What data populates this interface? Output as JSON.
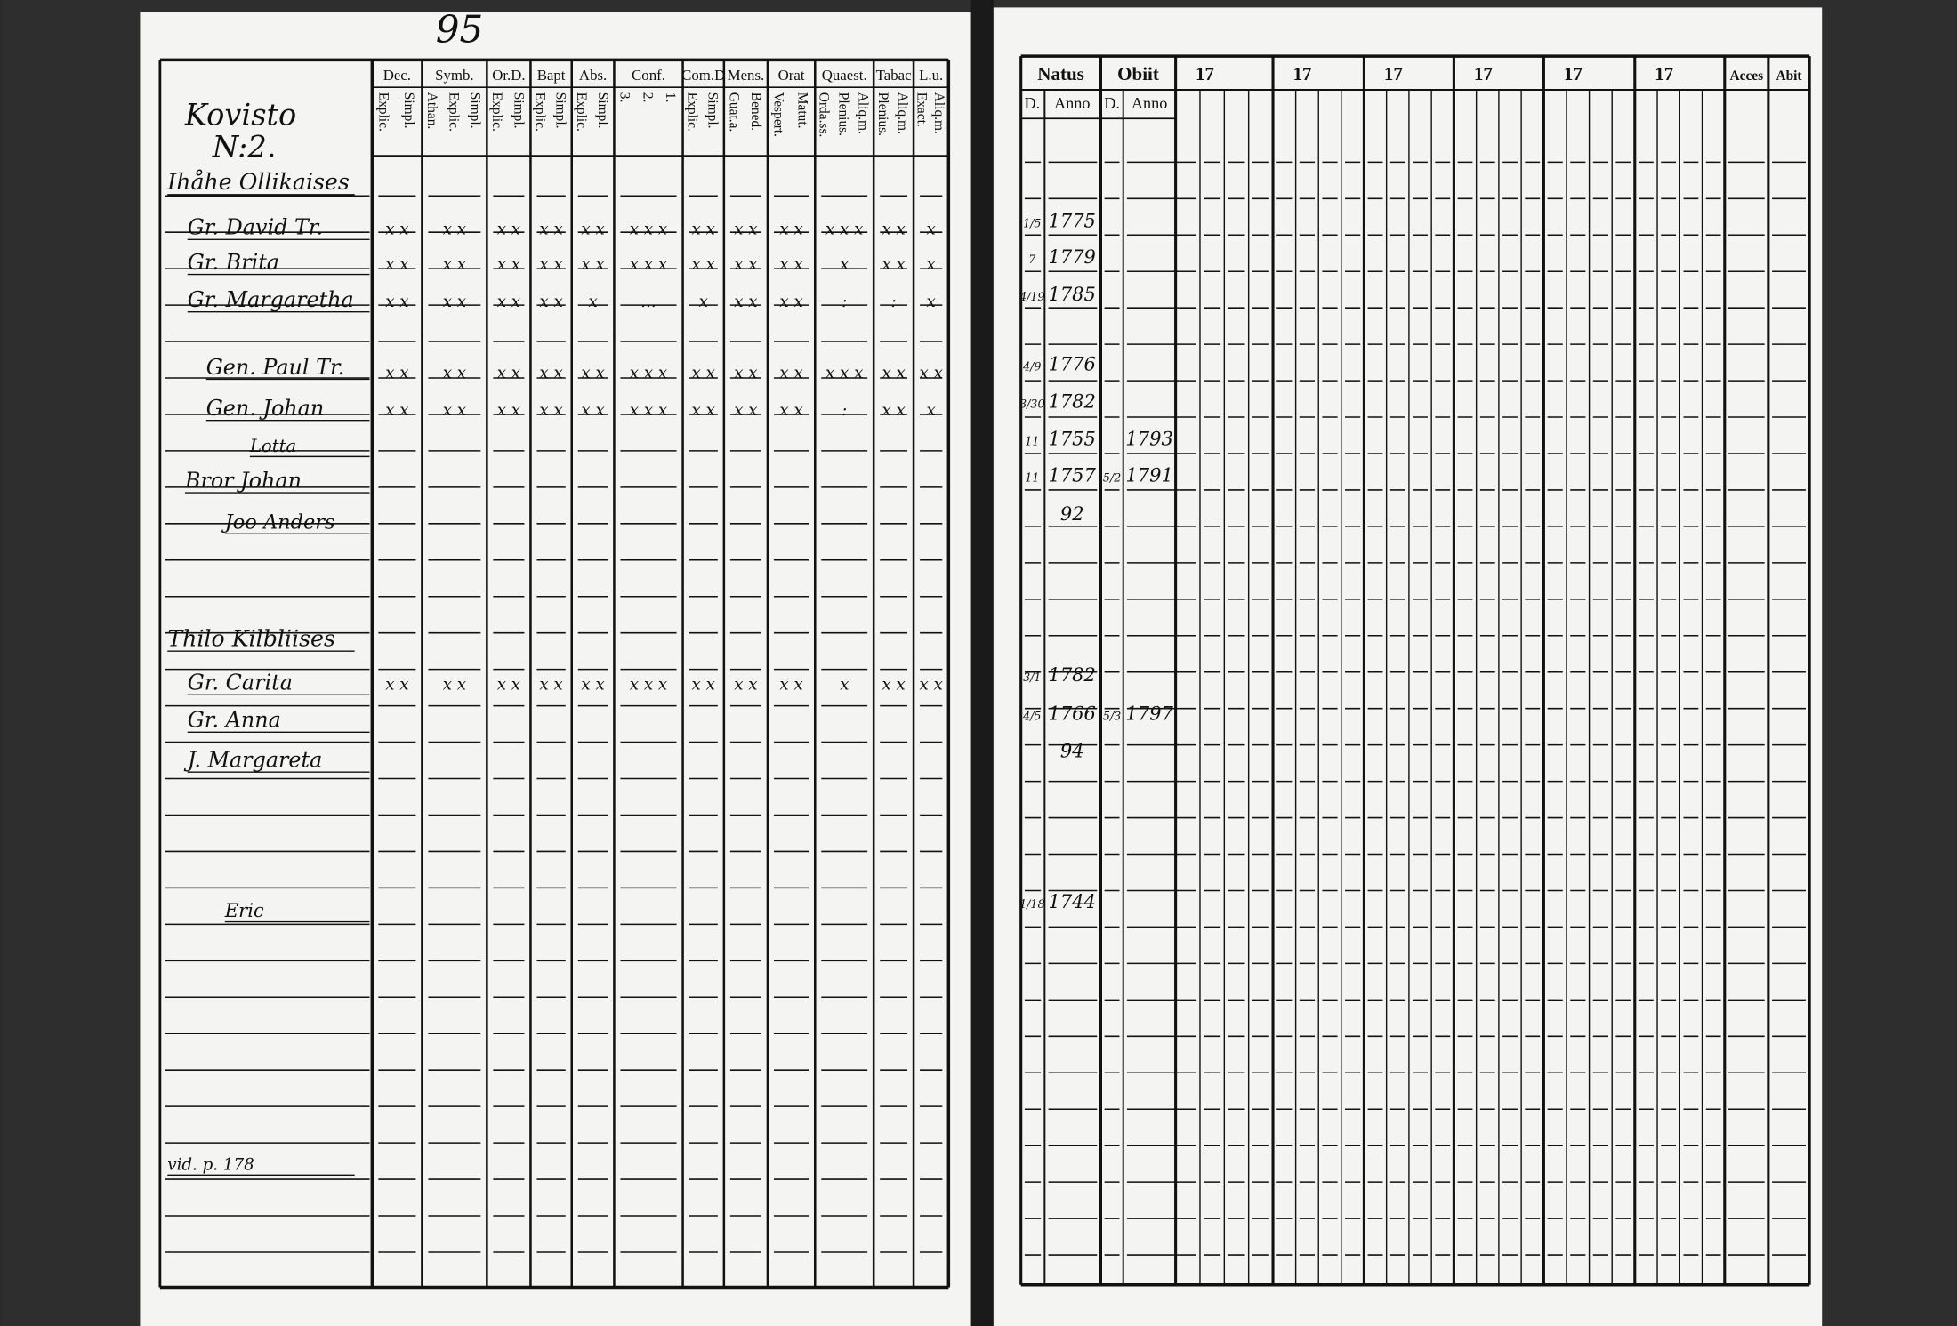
{
  "page_number": "95",
  "left_page": {
    "location": [
      "Kovisto",
      "N:2."
    ],
    "columns": [
      {
        "title": "Dec.",
        "sub": [
          "Explic.",
          "Simpl."
        ]
      },
      {
        "title": "Symb.",
        "sub": [
          "Athan.",
          "Explic.",
          "Simpl."
        ]
      },
      {
        "title": "Or.D.",
        "sub": [
          "Explic.",
          "Simpl."
        ]
      },
      {
        "title": "Bapt",
        "sub": [
          "Explic.",
          "Simpl."
        ]
      },
      {
        "title": "Abs.",
        "sub": [
          "Explic.",
          "Simpl."
        ]
      },
      {
        "title": "Conf.",
        "sub": [
          "3.",
          "2.",
          "1."
        ]
      },
      {
        "title": "Com.D",
        "sub": [
          "Explic.",
          "Simpl."
        ]
      },
      {
        "title": "Mens.",
        "sub": [
          "Guat.a.",
          "Bened."
        ]
      },
      {
        "title": "Orat",
        "sub": [
          "Vespert.",
          "Matut."
        ]
      },
      {
        "title": "Quaest.",
        "sub": [
          "Orda.ss.",
          "Plenius.",
          "Aliq.m."
        ]
      },
      {
        "title": "Tabac",
        "sub": [
          "Plenius.",
          "Aliq.m."
        ]
      },
      {
        "title": "L.u.",
        "sub": [
          "Exact.",
          "Aliq.m."
        ]
      }
    ],
    "names": [
      "Ihåhe Ollikaises",
      "Gr. David Tr.",
      "Gr. Brita",
      "Gr. Margaretha",
      "Gen. Paul Tr.",
      "Gen. Johan",
      "Lotta",
      "Bror Johan",
      "Joo Anders",
      "Thilo Kilbliises",
      "Gr. Carita",
      "Gr. Anna",
      "J. Margareta",
      "Eric",
      "vid. p. 178"
    ],
    "marks": [
      [
        "x x",
        "x x",
        "x x",
        "x x",
        "x x",
        "x x x",
        "x x",
        "x x",
        "x x",
        "x x x",
        "x x",
        "x"
      ],
      [
        "x x",
        "x x",
        "x x",
        "x x",
        "x x",
        "x x x",
        "x x",
        "x x",
        "x x",
        "x",
        "x x",
        "x"
      ],
      [
        "x x",
        "x x",
        "x x",
        "x x",
        "x",
        "...",
        "x",
        "x x",
        "x x",
        ":",
        ":",
        "x"
      ],
      [
        "x x",
        "x x",
        "x x",
        "x x",
        "x x",
        "x x x",
        "x x",
        "x x",
        "x x",
        "x x x",
        "x x",
        "x x"
      ],
      [
        "x x",
        "x x",
        "x x",
        "x x",
        "x x",
        "x x x",
        "x x",
        "x x",
        "x x",
        ":",
        "x x",
        "x"
      ],
      [
        "x x",
        "x x",
        "x x",
        "x x",
        "x x",
        "x x x",
        "x x",
        "x x",
        "x x",
        "x",
        "x x",
        "x x"
      ]
    ]
  },
  "right_page": {
    "headers": [
      "Natus",
      "Obiit",
      "17",
      "17",
      "17",
      "17",
      "17",
      "17",
      "Acces",
      "Abit"
    ],
    "subheaders": [
      "D.",
      "Anno",
      "D.",
      "Anno"
    ],
    "natus": [
      {
        "day": "1/5",
        "year": "1775"
      },
      {
        "day": "7",
        "year": "1779"
      },
      {
        "day": "4/19",
        "year": "1785"
      },
      {
        "day": "4/9",
        "year": "1776"
      },
      {
        "day": "3/30",
        "year": "1782"
      },
      {
        "day": "11",
        "year": "1755"
      },
      {
        "day": "11",
        "year": "1757"
      },
      {
        "day": "",
        "year": "92"
      },
      {
        "day": "3/1",
        "year": "1782"
      },
      {
        "day": "4/5",
        "year": "1766"
      },
      {
        "day": "",
        "year": "94"
      },
      {
        "day": "1/18",
        "year": "1744"
      }
    ],
    "obiit": [
      {
        "row": 5,
        "day": "",
        "year": "1793"
      },
      {
        "row": 6,
        "day": "5/2",
        "year": "1791"
      },
      {
        "row": 9,
        "day": "5/3",
        "year": "1797"
      }
    ]
  }
}
